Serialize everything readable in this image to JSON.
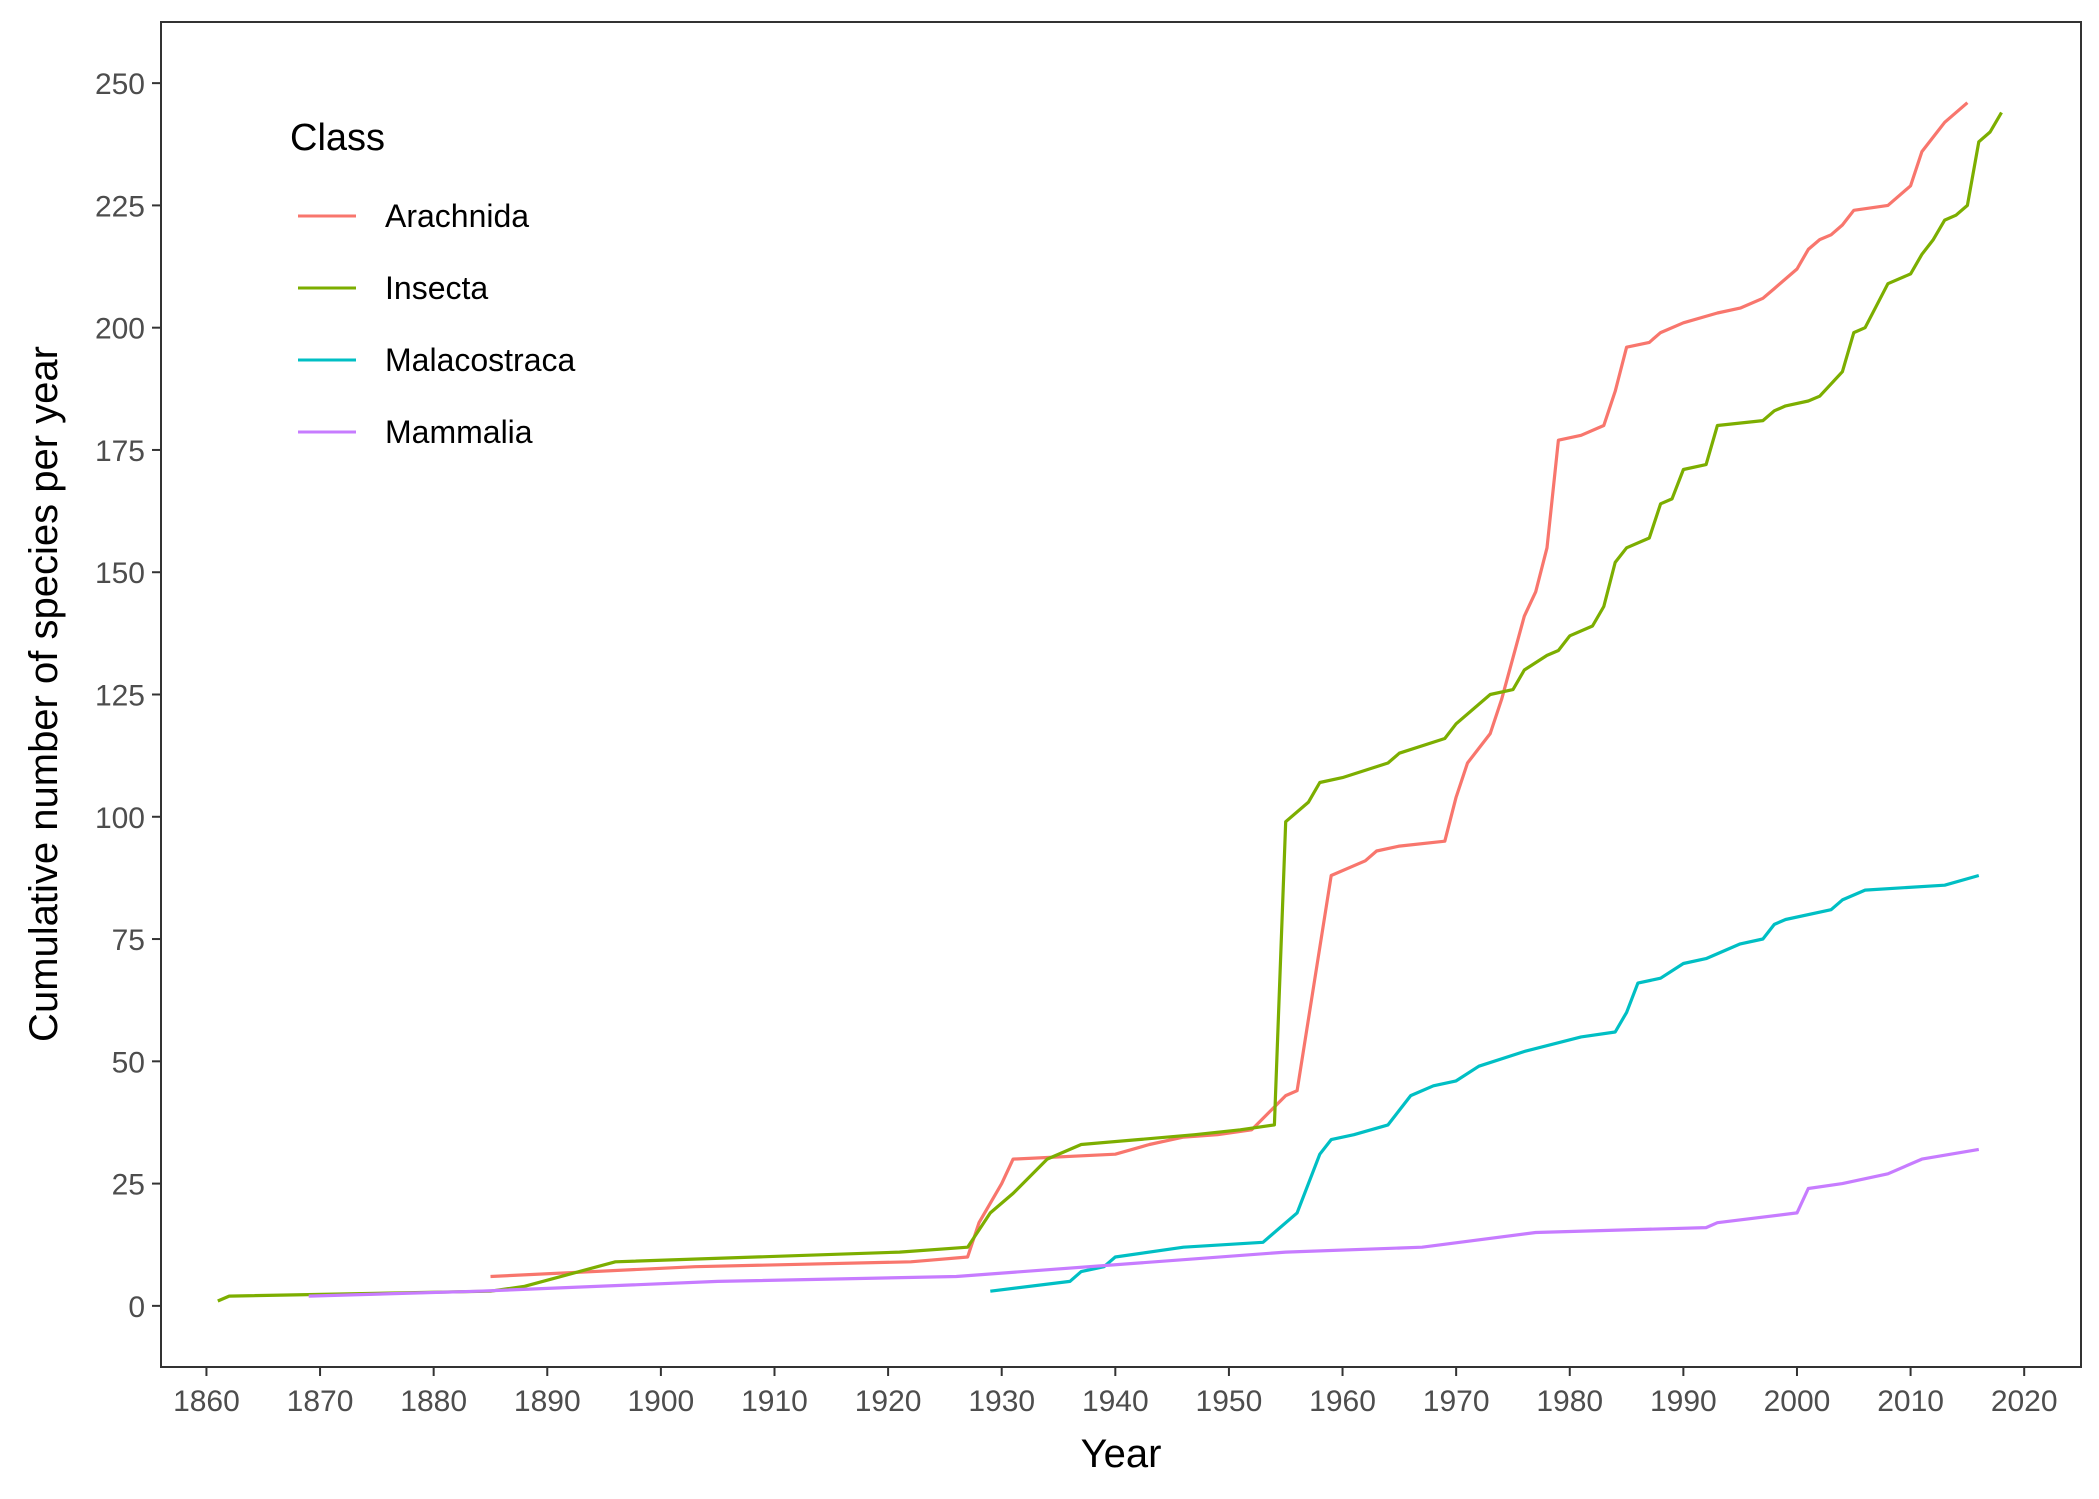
{
  "chart_data": {
    "type": "line",
    "xlabel": "Year",
    "ylabel": "Cumulative number of species per year",
    "xlim": [
      1856,
      2025
    ],
    "ylim": [
      -12.5,
      262.5
    ],
    "xticks": [
      1860,
      1870,
      1880,
      1890,
      1900,
      1910,
      1920,
      1930,
      1940,
      1950,
      1960,
      1970,
      1980,
      1990,
      2000,
      2010,
      2020
    ],
    "yticks": [
      0,
      25,
      50,
      75,
      100,
      125,
      150,
      175,
      200,
      225,
      250
    ],
    "grid": false,
    "legend": {
      "title": "Class",
      "position": "top-left"
    },
    "series": [
      {
        "name": "Arachnida",
        "color": "#F8766D",
        "x": [
          1885,
          1903,
          1922,
          1927,
          1928,
          1930,
          1931,
          1940,
          1943,
          1946,
          1949,
          1952,
          1955,
          1956,
          1959,
          1962,
          1963,
          1965,
          1969,
          1970,
          1971,
          1973,
          1974,
          1976,
          1977,
          1978,
          1979,
          1981,
          1983,
          1984,
          1985,
          1987,
          1988,
          1990,
          1993,
          1995,
          1997,
          1998,
          2000,
          2001,
          2002,
          2003,
          2004,
          2005,
          2008,
          2010,
          2011,
          2013,
          2015
        ],
        "y": [
          6,
          8,
          9,
          10,
          17,
          25,
          30,
          31,
          33,
          34.5,
          35,
          36,
          43,
          44,
          88,
          91,
          93,
          94,
          95,
          104,
          111,
          117,
          124,
          141,
          146,
          155,
          177,
          178,
          180,
          187,
          196,
          197,
          199,
          201,
          203,
          204,
          206,
          208,
          212,
          216,
          218,
          219,
          221,
          224,
          225,
          229,
          236,
          242,
          246
        ]
      },
      {
        "name": "Insecta",
        "color": "#7CAE00",
        "x": [
          1861,
          1862,
          1885,
          1888,
          1896,
          1921,
          1927,
          1929,
          1931,
          1934,
          1937,
          1942,
          1947,
          1951,
          1954,
          1955,
          1957,
          1958,
          1960,
          1964,
          1965,
          1969,
          1970,
          1973,
          1975,
          1976,
          1978,
          1979,
          1980,
          1982,
          1983,
          1984,
          1985,
          1987,
          1988,
          1989,
          1990,
          1992,
          1993,
          1997,
          1998,
          1999,
          2001,
          2002,
          2004,
          2005,
          2006,
          2008,
          2010,
          2011,
          2012,
          2013,
          2014,
          2015,
          2016,
          2017,
          2018
        ],
        "y": [
          1,
          2,
          3,
          4,
          9,
          11,
          12,
          19,
          23,
          30,
          33,
          34,
          35,
          36,
          37,
          99,
          103,
          107,
          108,
          111,
          113,
          116,
          119,
          125,
          126,
          130,
          133,
          134,
          137,
          139,
          143,
          152,
          155,
          157,
          164,
          165,
          171,
          172,
          180,
          181,
          183,
          184,
          185,
          186,
          191,
          199,
          200,
          209,
          211,
          215,
          218,
          222,
          223,
          225,
          238,
          240,
          244
        ]
      },
      {
        "name": "Malacostraca",
        "color": "#00BFC4",
        "x": [
          1929,
          1936,
          1937,
          1939,
          1940,
          1946,
          1953,
          1956,
          1958,
          1959,
          1961,
          1964,
          1966,
          1968,
          1970,
          1972,
          1976,
          1981,
          1984,
          1985,
          1986,
          1988,
          1990,
          1992,
          1995,
          1997,
          1998,
          1999,
          2003,
          2004,
          2006,
          2013,
          2016
        ],
        "y": [
          3,
          5,
          7,
          8,
          10,
          12,
          13,
          19,
          31,
          34,
          35,
          37,
          43,
          45,
          46,
          49,
          52,
          55,
          56,
          60,
          66,
          67,
          70,
          71,
          74,
          75,
          78,
          79,
          81,
          83,
          85,
          86,
          88
        ]
      },
      {
        "name": "Mammalia",
        "color": "#C77CFF",
        "x": [
          1869,
          1884,
          1905,
          1926,
          1955,
          1967,
          1977,
          1992,
          1993,
          2000,
          2001,
          2004,
          2008,
          2011,
          2016
        ],
        "y": [
          2,
          3,
          5,
          6,
          11,
          12,
          15,
          16,
          17,
          19,
          24,
          25,
          27,
          30,
          32
        ]
      }
    ]
  }
}
